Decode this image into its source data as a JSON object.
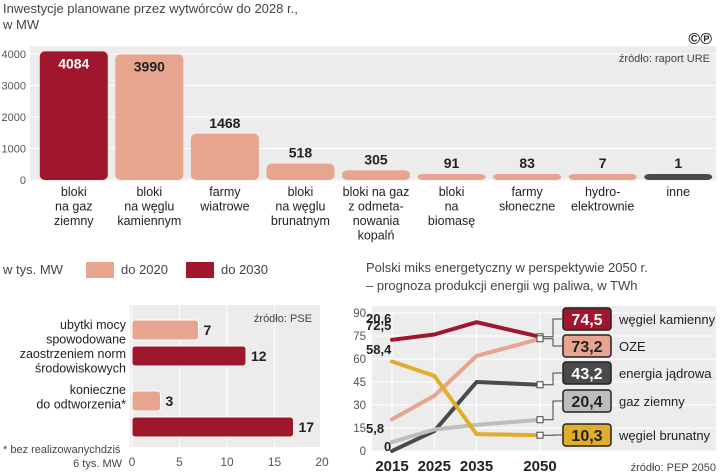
{
  "colors": {
    "dark_red": "#a0172d",
    "salmon": "#e7a48e",
    "panel_bg": "#ececec",
    "grid": "#ffffff",
    "gray_dark": "#4a4a4a",
    "gray_light": "#bdbdbd",
    "yellow": "#e2ad2a",
    "text": "#222222"
  },
  "logo_text": "©℗",
  "chart_data": [
    {
      "id": "investments",
      "type": "bar",
      "title": "Inwestycje planowane przez wytwórców do 2028 r.,",
      "subtitle": "w MW",
      "source": "źródło: raport URE",
      "ylim": [
        0,
        4000
      ],
      "yticks": [
        0,
        1000,
        2000,
        3000,
        4000
      ],
      "categories": [
        [
          "bloki",
          "na gaz",
          "ziemny"
        ],
        [
          "bloki",
          "na węglu",
          "kamiennym"
        ],
        [
          "farmy",
          "wiatrowe"
        ],
        [
          "bloki",
          "na węglu",
          "brunatnym"
        ],
        [
          "bloki na gaz",
          "z odmeta-",
          "nowania",
          "kopalń"
        ],
        [
          "bloki",
          "na",
          "biomasę"
        ],
        [
          "farmy",
          "słoneczne"
        ],
        [
          "hydro-",
          "elektrownie"
        ],
        [
          "inne"
        ]
      ],
      "values": [
        4084,
        3990,
        1468,
        518,
        305,
        91,
        83,
        7,
        1
      ],
      "value_labels": [
        "4084",
        "3990",
        "1468",
        "518",
        "305",
        "91",
        "83",
        "7",
        "1"
      ],
      "bar_colors": [
        "#a0172d",
        "#e7a48e",
        "#e7a48e",
        "#e7a48e",
        "#e7a48e",
        "#e7a48e",
        "#e7a48e",
        "#e7a48e",
        "#4a4a4a"
      ]
    },
    {
      "id": "losses",
      "type": "bar",
      "orientation": "horizontal",
      "unit": "w tys. MW",
      "source": "źródło: PSE",
      "legend": [
        {
          "name": "do 2020",
          "color": "#e7a48e"
        },
        {
          "name": "do 2030",
          "color": "#a0172d"
        }
      ],
      "categories": [
        [
          "ubytki mocy",
          "spowodowane",
          "zaostrzeniem norm",
          "środowiskowych"
        ],
        [
          "konieczne",
          "do odtworzenia*"
        ]
      ],
      "series": [
        {
          "name": "do 2020",
          "values": [
            7,
            3
          ]
        },
        {
          "name": "do 2030",
          "values": [
            12,
            17
          ]
        }
      ],
      "xlim": [
        0,
        20
      ],
      "xticks": [
        0,
        5,
        10,
        15,
        20
      ],
      "footnote": [
        "* bez realizowanychdziś",
        "6 tys. MW"
      ]
    },
    {
      "id": "energy_mix",
      "type": "line",
      "title": "Polski miks energetyczny w perspektywie 2050 r.",
      "subtitle": "– prognoza produkcji energii wg paliwa, w TWh",
      "source": "źródło: PEP 2050",
      "x": [
        2015,
        2025,
        2035,
        2050
      ],
      "ylim": [
        0,
        90
      ],
      "yticks": [
        0,
        15,
        30,
        45,
        60,
        75,
        90
      ],
      "series": [
        {
          "name": "węgiel kamienny",
          "color": "#a0172d",
          "values": [
            72.5,
            76,
            84,
            74.5
          ],
          "start_label": "72,5",
          "end_label": "74,5"
        },
        {
          "name": "OZE",
          "color": "#e7a48e",
          "values": [
            20.6,
            36,
            62,
            73.2
          ],
          "start_label": "20,6",
          "end_label": "73,2"
        },
        {
          "name": "energia jądrowa",
          "color": "#4a4a4a",
          "values": [
            0,
            13,
            45,
            43.2
          ],
          "start_label": "0",
          "end_label": "43,2"
        },
        {
          "name": "gaz ziemny",
          "color": "#bdbdbd",
          "values": [
            5.8,
            14,
            17,
            20.4
          ],
          "start_label": "5,8",
          "end_label": "20,4"
        },
        {
          "name": "węgiel brunatny",
          "color": "#e2ad2a",
          "values": [
            58.4,
            49,
            11,
            10.3
          ],
          "start_label": "58,4",
          "end_label": "10,3"
        }
      ]
    }
  ]
}
